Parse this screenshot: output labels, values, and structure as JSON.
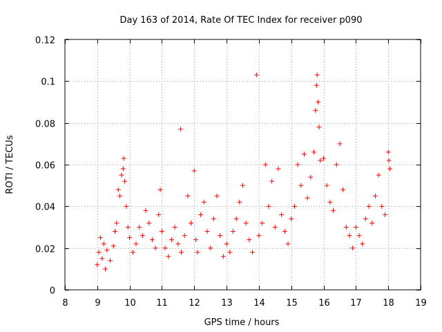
{
  "chart_data": {
    "type": "scatter",
    "title": "Day 163 of 2014, Rate Of TEC Index for receiver p090",
    "xlabel": "GPS time / hours",
    "ylabel": "ROTI / TECUs",
    "xlim": [
      8,
      19
    ],
    "ylim": [
      0,
      0.12
    ],
    "xticks": [
      8,
      9,
      10,
      11,
      12,
      13,
      14,
      15,
      16,
      17,
      18,
      19
    ],
    "yticks": [
      0,
      0.02,
      0.04,
      0.06,
      0.08,
      0.1,
      0.12
    ],
    "xtick_labels": [
      "8",
      "9",
      "10",
      "11",
      "12",
      "13",
      "14",
      "15",
      "16",
      "17",
      "18",
      "19"
    ],
    "ytick_labels": [
      "0",
      "0.02",
      "0.04",
      "0.06",
      "0.08",
      "0.1",
      "0.12"
    ],
    "grid": true,
    "marker": "+",
    "color": "#ff0000",
    "series": [
      {
        "name": "ROTI",
        "points": [
          [
            9.0,
            0.012
          ],
          [
            9.05,
            0.018
          ],
          [
            9.1,
            0.025
          ],
          [
            9.15,
            0.015
          ],
          [
            9.2,
            0.022
          ],
          [
            9.25,
            0.01
          ],
          [
            9.3,
            0.019
          ],
          [
            9.4,
            0.014
          ],
          [
            9.5,
            0.021
          ],
          [
            9.55,
            0.028
          ],
          [
            9.6,
            0.032
          ],
          [
            9.65,
            0.048
          ],
          [
            9.7,
            0.045
          ],
          [
            9.75,
            0.055
          ],
          [
            9.8,
            0.058
          ],
          [
            9.82,
            0.063
          ],
          [
            9.85,
            0.052
          ],
          [
            9.9,
            0.04
          ],
          [
            9.95,
            0.03
          ],
          [
            10.0,
            0.025
          ],
          [
            10.1,
            0.018
          ],
          [
            10.2,
            0.022
          ],
          [
            10.3,
            0.03
          ],
          [
            10.4,
            0.026
          ],
          [
            10.5,
            0.038
          ],
          [
            10.6,
            0.032
          ],
          [
            10.7,
            0.024
          ],
          [
            10.8,
            0.02
          ],
          [
            10.9,
            0.036
          ],
          [
            10.95,
            0.048
          ],
          [
            11.0,
            0.028
          ],
          [
            11.1,
            0.02
          ],
          [
            11.2,
            0.016
          ],
          [
            11.3,
            0.024
          ],
          [
            11.4,
            0.03
          ],
          [
            11.5,
            0.022
          ],
          [
            11.58,
            0.077
          ],
          [
            11.6,
            0.018
          ],
          [
            11.7,
            0.026
          ],
          [
            11.8,
            0.045
          ],
          [
            11.9,
            0.032
          ],
          [
            12.0,
            0.057
          ],
          [
            12.05,
            0.024
          ],
          [
            12.1,
            0.018
          ],
          [
            12.2,
            0.036
          ],
          [
            12.3,
            0.042
          ],
          [
            12.4,
            0.028
          ],
          [
            12.5,
            0.02
          ],
          [
            12.6,
            0.034
          ],
          [
            12.7,
            0.045
          ],
          [
            12.8,
            0.026
          ],
          [
            12.9,
            0.016
          ],
          [
            13.0,
            0.022
          ],
          [
            13.1,
            0.018
          ],
          [
            13.2,
            0.028
          ],
          [
            13.3,
            0.034
          ],
          [
            13.4,
            0.042
          ],
          [
            13.5,
            0.05
          ],
          [
            13.6,
            0.032
          ],
          [
            13.7,
            0.024
          ],
          [
            13.8,
            0.018
          ],
          [
            13.93,
            0.103
          ],
          [
            14.0,
            0.026
          ],
          [
            14.1,
            0.032
          ],
          [
            14.2,
            0.06
          ],
          [
            14.3,
            0.04
          ],
          [
            14.4,
            0.052
          ],
          [
            14.5,
            0.03
          ],
          [
            14.6,
            0.058
          ],
          [
            14.7,
            0.036
          ],
          [
            14.8,
            0.028
          ],
          [
            14.9,
            0.022
          ],
          [
            15.0,
            0.034
          ],
          [
            15.1,
            0.04
          ],
          [
            15.2,
            0.06
          ],
          [
            15.3,
            0.05
          ],
          [
            15.4,
            0.065
          ],
          [
            15.5,
            0.044
          ],
          [
            15.6,
            0.054
          ],
          [
            15.7,
            0.066
          ],
          [
            15.75,
            0.086
          ],
          [
            15.78,
            0.098
          ],
          [
            15.8,
            0.103
          ],
          [
            15.83,
            0.09
          ],
          [
            15.86,
            0.078
          ],
          [
            15.9,
            0.062
          ],
          [
            16.0,
            0.063
          ],
          [
            16.1,
            0.05
          ],
          [
            16.2,
            0.042
          ],
          [
            16.3,
            0.038
          ],
          [
            16.4,
            0.06
          ],
          [
            16.5,
            0.07
          ],
          [
            16.6,
            0.048
          ],
          [
            16.7,
            0.03
          ],
          [
            16.8,
            0.026
          ],
          [
            16.9,
            0.02
          ],
          [
            17.0,
            0.03
          ],
          [
            17.1,
            0.026
          ],
          [
            17.2,
            0.022
          ],
          [
            17.3,
            0.034
          ],
          [
            17.4,
            0.04
          ],
          [
            17.5,
            0.032
          ],
          [
            17.6,
            0.045
          ],
          [
            17.7,
            0.055
          ],
          [
            17.8,
            0.04
          ],
          [
            17.9,
            0.036
          ],
          [
            18.0,
            0.066
          ],
          [
            18.02,
            0.062
          ],
          [
            18.05,
            0.058
          ]
        ]
      }
    ]
  }
}
